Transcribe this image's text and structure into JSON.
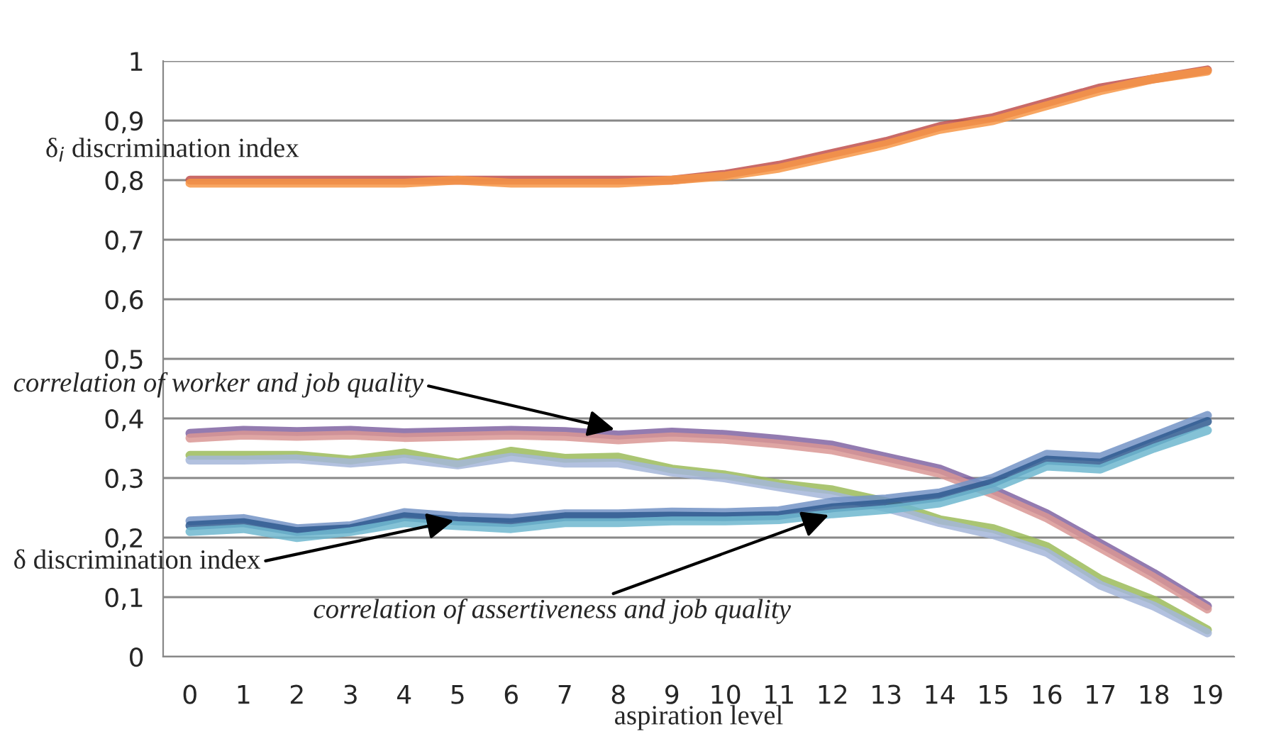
{
  "chart_data": {
    "type": "line",
    "xlabel": "aspiration level",
    "categories": [
      "0",
      "1",
      "2",
      "3",
      "4",
      "5",
      "6",
      "7",
      "8",
      "9",
      "10",
      "11",
      "12",
      "13",
      "14",
      "15",
      "16",
      "17",
      "18",
      "19"
    ],
    "ylim": [
      0,
      1
    ],
    "yticks": [
      0,
      {
        "value": 0.1,
        "label": "0,1"
      },
      {
        "value": 0.2,
        "label": "0,2"
      },
      {
        "value": 0.3,
        "label": "0,3"
      },
      {
        "value": 0.4,
        "label": "0,4"
      },
      {
        "value": 0.5,
        "label": "0,5"
      },
      {
        "value": 0.6,
        "label": "0,6"
      },
      {
        "value": 0.7,
        "label": "0,7"
      },
      {
        "value": 0.8,
        "label": "0,8"
      },
      {
        "value": 0.9,
        "label": "0,9"
      },
      1
    ],
    "grid": "y",
    "legend": false,
    "marker": "none",
    "line_style": "solid",
    "series": [
      {
        "color": "#c0504d",
        "values": [
          0.8,
          0.8,
          0.8,
          0.8,
          0.8,
          0.8,
          0.8,
          0.8,
          0.8,
          0.8,
          0.81,
          0.825,
          0.845,
          0.865,
          0.89,
          0.905,
          0.93,
          0.955,
          0.97,
          0.985
        ]
      },
      {
        "color": "#f79646",
        "values": [
          0.795,
          0.795,
          0.795,
          0.795,
          0.795,
          0.8,
          0.795,
          0.795,
          0.795,
          0.8,
          0.807,
          0.82,
          0.84,
          0.86,
          0.885,
          0.9,
          0.925,
          0.95,
          0.97,
          0.983
        ]
      },
      {
        "color": "#8064a2",
        "values": [
          0.375,
          0.38,
          0.378,
          0.38,
          0.376,
          0.378,
          0.38,
          0.378,
          0.372,
          0.377,
          0.373,
          0.365,
          0.355,
          0.335,
          0.315,
          0.28,
          0.24,
          0.19,
          0.14,
          0.085
        ]
      },
      {
        "color": "#d99694",
        "values": [
          0.367,
          0.372,
          0.37,
          0.372,
          0.368,
          0.37,
          0.372,
          0.37,
          0.364,
          0.369,
          0.365,
          0.357,
          0.347,
          0.328,
          0.308,
          0.273,
          0.233,
          0.183,
          0.133,
          0.08
        ]
      },
      {
        "color": "#9bbb59",
        "values": [
          0.338,
          0.338,
          0.338,
          0.33,
          0.342,
          0.325,
          0.345,
          0.333,
          0.335,
          0.315,
          0.305,
          0.29,
          0.28,
          0.26,
          0.23,
          0.215,
          0.185,
          0.13,
          0.095,
          0.045
        ]
      },
      {
        "color": "#a5b6d9",
        "values": [
          0.33,
          0.33,
          0.332,
          0.325,
          0.332,
          0.322,
          0.335,
          0.325,
          0.325,
          0.31,
          0.3,
          0.285,
          0.27,
          0.25,
          0.225,
          0.205,
          0.175,
          0.12,
          0.085,
          0.04
        ]
      },
      {
        "color": "#7393c6",
        "values": [
          0.228,
          0.232,
          0.215,
          0.22,
          0.242,
          0.235,
          0.232,
          0.24,
          0.24,
          0.243,
          0.242,
          0.245,
          0.26,
          0.265,
          0.275,
          0.3,
          0.34,
          0.335,
          0.37,
          0.405
        ]
      },
      {
        "color": "#2f5a8f",
        "values": [
          0.22,
          0.225,
          0.21,
          0.215,
          0.235,
          0.228,
          0.225,
          0.235,
          0.235,
          0.236,
          0.235,
          0.237,
          0.25,
          0.257,
          0.268,
          0.292,
          0.33,
          0.325,
          0.36,
          0.395
        ]
      },
      {
        "color": "#6fb7cf",
        "values": [
          0.21,
          0.215,
          0.2,
          0.21,
          0.225,
          0.22,
          0.215,
          0.225,
          0.225,
          0.228,
          0.228,
          0.23,
          0.24,
          0.247,
          0.258,
          0.283,
          0.32,
          0.315,
          0.35,
          0.38
        ]
      }
    ],
    "annotations": [
      "δ$_{i}$ discrimination index",
      {
        "text": "correlation of worker and job quality",
        "x": "8",
        "y": 0.38
      },
      {
        "text": "δ discrimination index",
        "x": "5",
        "y": 0.23
      },
      {
        "text": "correlation of assertiveness and job quality",
        "x": "12",
        "y": 0.24
      }
    ]
  }
}
